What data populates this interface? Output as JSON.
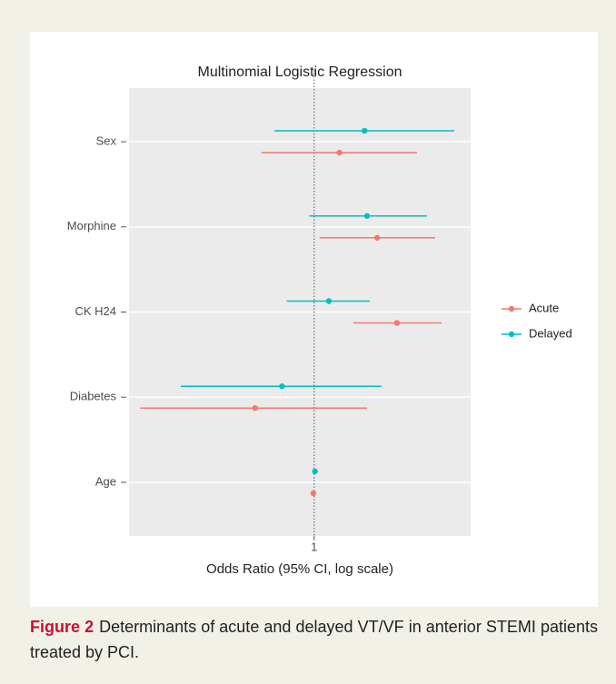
{
  "chart_data": {
    "type": "forest",
    "title": "Multinomial Logistic Regression",
    "x_label": "Odds Ratio (95% CI, log scale)",
    "categories": [
      "Sex",
      "Morphine",
      "CK H24",
      "Diabetes",
      "Age"
    ],
    "series": [
      {
        "name": "Acute",
        "color": "#f8766d",
        "values": [
          1.37,
          2.19,
          2.8,
          0.48,
          0.99
        ],
        "lower": [
          0.52,
          1.07,
          1.63,
          0.115,
          0.98
        ],
        "upper": [
          3.59,
          4.5,
          4.88,
          1.93,
          1.01
        ]
      },
      {
        "name": "Delayed",
        "color": "#00bfc4",
        "values": [
          1.87,
          1.93,
          1.2,
          0.67,
          1.01
        ],
        "lower": [
          0.61,
          0.94,
          0.71,
          0.19,
          1.0
        ],
        "upper": [
          5.71,
          4.07,
          2.0,
          2.31,
          1.03
        ]
      }
    ],
    "xlim": [
      0.1,
      7
    ],
    "xticks": [
      1
    ],
    "log_x": true,
    "grid": true,
    "legend": "right"
  },
  "caption": {
    "label": "Figure 2",
    "text": "Determinants of acute and delayed VT/VF in anterior STEMI patients treated by PCI."
  }
}
